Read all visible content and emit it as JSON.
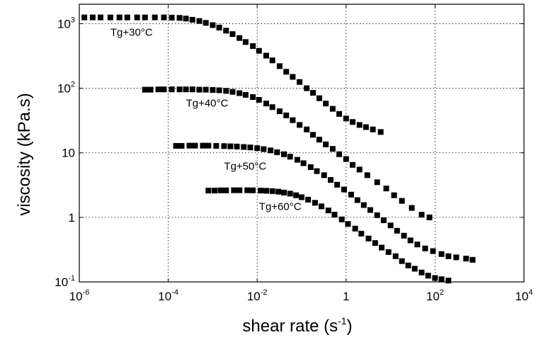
{
  "chart_data": {
    "type": "scatter",
    "xscale": "log",
    "yscale": "log",
    "xlim": [
      1e-06,
      10000.0
    ],
    "ylim": [
      0.1,
      2000
    ],
    "xlabel": "shear rate (s",
    "xlabel_sup": "-1",
    "xlabel_end": ")",
    "ylabel": "viscosity (kPa.s)",
    "grid": true,
    "x_ticks": [
      {
        "value": 1e-06,
        "base": "10",
        "exp": "-6"
      },
      {
        "value": 0.0001,
        "base": "10",
        "exp": "-4"
      },
      {
        "value": 0.01,
        "base": "10",
        "exp": "-2"
      },
      {
        "value": 1,
        "base": "1",
        "exp": ""
      },
      {
        "value": 100.0,
        "base": "10",
        "exp": "2"
      },
      {
        "value": 10000.0,
        "base": "10",
        "exp": "4"
      }
    ],
    "y_ticks": [
      {
        "value": 0.1,
        "base": "10",
        "exp": "-1"
      },
      {
        "value": 1,
        "base": "1",
        "exp": ""
      },
      {
        "value": 10,
        "base": "10",
        "exp": ""
      },
      {
        "value": 100,
        "base": "10",
        "exp": "2"
      },
      {
        "value": 1000,
        "base": "10",
        "exp": "3"
      }
    ],
    "marker": "square",
    "marker_color": "#000000",
    "annotations": [
      {
        "text": "Tg+30°C",
        "x": 5e-06,
        "y": 650
      },
      {
        "text": "Tg+40°C",
        "x": 0.00025,
        "y": 52
      },
      {
        "text": "Tg+50°C",
        "x": 0.0018,
        "y": 5.5
      },
      {
        "text": "Tg+60°C",
        "x": 0.011,
        "y": 1.3
      }
    ],
    "series": [
      {
        "x": [
          1.3e-06,
          2e-06,
          3e-06,
          5e-06,
          8e-06,
          1.2e-05,
          2e-05,
          3e-05,
          5e-05,
          8e-05,
          0.00012,
          0.00018,
          0.00025,
          0.00035,
          0.0005,
          0.0007,
          0.001,
          0.0014,
          0.002,
          0.0028,
          0.004,
          0.0055,
          0.008,
          0.011,
          0.016,
          0.022,
          0.032,
          0.045,
          0.063,
          0.09,
          0.13,
          0.18,
          0.25,
          0.35,
          0.5,
          0.7,
          1.0,
          1.4,
          2.0,
          2.8,
          4.0,
          6.0
        ],
        "y": [
          1250,
          1250,
          1250,
          1250,
          1250,
          1250,
          1250,
          1250,
          1250,
          1250,
          1240,
          1230,
          1200,
          1150,
          1100,
          1030,
          950,
          870,
          780,
          690,
          600,
          520,
          450,
          380,
          320,
          270,
          220,
          180,
          150,
          125,
          100,
          85,
          70,
          58,
          48,
          40,
          34,
          30,
          27,
          25,
          23,
          21
        ]
      },
      {
        "x": [
          3e-05,
          4e-05,
          6e-05,
          8e-05,
          0.00012,
          0.00018,
          0.00025,
          0.00035,
          0.0005,
          0.0007,
          0.001,
          0.0014,
          0.002,
          0.0028,
          0.004,
          0.0055,
          0.008,
          0.011,
          0.016,
          0.022,
          0.032,
          0.045,
          0.063,
          0.09,
          0.13,
          0.18,
          0.25,
          0.35,
          0.5,
          0.7,
          1.0,
          1.4,
          2.0,
          3.0,
          5.0,
          8.0,
          12,
          18,
          30,
          50,
          75
        ],
        "y": [
          95,
          95,
          96,
          96,
          96,
          96,
          96,
          96,
          95,
          95,
          94,
          93,
          91,
          88,
          84,
          79,
          73,
          66,
          58,
          51,
          44,
          38,
          32,
          27,
          23,
          19,
          16,
          13.5,
          11.5,
          9.5,
          8,
          6.5,
          5.5,
          4.5,
          3.5,
          2.8,
          2.2,
          1.8,
          1.4,
          1.1,
          1.0
        ]
      },
      {
        "x": [
          0.00015,
          0.0002,
          0.0003,
          0.0004,
          0.0006,
          0.0008,
          0.0012,
          0.0018,
          0.0025,
          0.0035,
          0.005,
          0.007,
          0.01,
          0.014,
          0.02,
          0.028,
          0.04,
          0.055,
          0.08,
          0.11,
          0.16,
          0.22,
          0.32,
          0.45,
          0.63,
          0.9,
          1.3,
          1.8,
          2.5,
          3.5,
          5,
          7,
          10,
          14,
          20,
          28,
          40,
          60,
          90,
          140,
          200,
          300,
          500,
          700
        ],
        "y": [
          12.8,
          12.8,
          12.9,
          12.9,
          12.9,
          12.9,
          12.8,
          12.7,
          12.6,
          12.5,
          12.3,
          12.1,
          11.8,
          11.4,
          10.9,
          10.2,
          9.5,
          8.7,
          7.8,
          6.9,
          6.0,
          5.2,
          4.5,
          3.8,
          3.2,
          2.7,
          2.25,
          1.85,
          1.55,
          1.3,
          1.08,
          0.9,
          0.75,
          0.62,
          0.52,
          0.44,
          0.38,
          0.33,
          0.3,
          0.27,
          0.25,
          0.24,
          0.23,
          0.22
        ]
      },
      {
        "x": [
          0.0008,
          0.0011,
          0.0015,
          0.002,
          0.003,
          0.004,
          0.006,
          0.008,
          0.012,
          0.016,
          0.022,
          0.03,
          0.04,
          0.055,
          0.075,
          0.1,
          0.14,
          0.2,
          0.28,
          0.4,
          0.55,
          0.8,
          1.1,
          1.6,
          2.2,
          3.2,
          4.5,
          6.3,
          9,
          13,
          18,
          25,
          35,
          50,
          70,
          100,
          140,
          200
        ],
        "y": [
          2.6,
          2.6,
          2.62,
          2.62,
          2.63,
          2.63,
          2.63,
          2.62,
          2.6,
          2.58,
          2.55,
          2.5,
          2.42,
          2.33,
          2.2,
          2.05,
          1.88,
          1.68,
          1.48,
          1.28,
          1.1,
          0.93,
          0.79,
          0.67,
          0.56,
          0.47,
          0.4,
          0.34,
          0.29,
          0.25,
          0.21,
          0.18,
          0.16,
          0.14,
          0.125,
          0.115,
          0.11,
          0.105
        ]
      }
    ]
  }
}
